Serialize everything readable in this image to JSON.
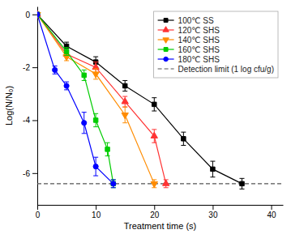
{
  "chart_data": {
    "type": "line",
    "xlabel": "Treatment time (s)",
    "ylabel": "Log(N/N₀)",
    "series": [
      {
        "name": "100℃ SS",
        "color": "black",
        "marker": "square",
        "x": [
          0,
          5,
          10,
          15,
          20,
          25,
          30,
          35
        ],
        "values": [
          0,
          -1.2,
          -1.8,
          -2.7,
          -3.4,
          -4.7,
          -5.85,
          -6.4
        ],
        "errors": [
          0.05,
          0.15,
          0.2,
          0.2,
          0.25,
          0.25,
          0.3,
          0.2
        ]
      },
      {
        "name": "120℃ SHS",
        "color": "#ff3333",
        "marker": "triangle-up",
        "x": [
          0,
          5,
          10,
          15,
          20,
          22
        ],
        "values": [
          0,
          -1.5,
          -2.0,
          -3.3,
          -4.6,
          -6.4
        ],
        "errors": [
          0.05,
          0.1,
          0.2,
          0.2,
          0.25,
          0.15
        ]
      },
      {
        "name": "140℃ SHS",
        "color": "#ff8c00",
        "marker": "triangle-down",
        "x": [
          0,
          5,
          10,
          15,
          20
        ],
        "values": [
          0,
          -1.6,
          -2.25,
          -3.8,
          -6.4
        ],
        "errors": [
          0.05,
          0.15,
          0.2,
          0.3,
          0.15
        ]
      },
      {
        "name": "160℃ SHS",
        "color": "#00cc00",
        "marker": "square",
        "x": [
          0,
          5,
          8,
          10,
          12,
          13
        ],
        "values": [
          0,
          -1.4,
          -2.3,
          -4.0,
          -5.1,
          -6.4
        ],
        "errors": [
          0.05,
          0.15,
          0.2,
          0.25,
          0.25,
          0.15
        ]
      },
      {
        "name": "180℃ SHS",
        "color": "blue",
        "marker": "circle",
        "x": [
          0,
          3,
          5,
          8,
          10,
          13
        ],
        "values": [
          0,
          -2.1,
          -2.7,
          -4.1,
          -5.75,
          -6.4
        ],
        "errors": [
          0.05,
          0.15,
          0.15,
          0.4,
          0.35,
          0.15
        ]
      }
    ],
    "reference_lines": [
      {
        "name": "Detection limit (1 log cfu/g)",
        "value": -6.4,
        "color": "#555555",
        "line_style": "dashed"
      }
    ],
    "xlim": [
      0,
      42
    ],
    "ylim": [
      -7.2,
      0.3
    ],
    "xticks": [
      0,
      10,
      20,
      30,
      40
    ],
    "yticks": [
      0,
      -2,
      -4,
      -6
    ],
    "grid": false,
    "legend": "upper right"
  }
}
